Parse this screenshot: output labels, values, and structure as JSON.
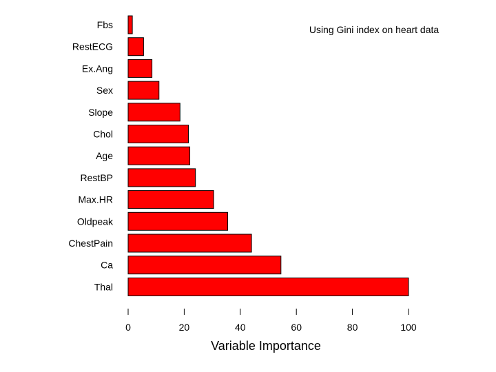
{
  "chart_data": {
    "type": "bar",
    "orientation": "horizontal",
    "categories": [
      "Fbs",
      "RestECG",
      "Ex.Ang",
      "Sex",
      "Slope",
      "Chol",
      "Age",
      "RestBP",
      "Max.HR",
      "Oldpeak",
      "ChestPain",
      "Ca",
      "Thal"
    ],
    "values": [
      1.5,
      5.5,
      8.5,
      11,
      18.5,
      21.5,
      22,
      24,
      30.5,
      35.5,
      44,
      54.5,
      100
    ],
    "xlabel": "Variable Importance",
    "ylabel": "",
    "xlim": [
      0,
      100
    ],
    "xticks": [
      0,
      20,
      40,
      60,
      80,
      100
    ],
    "annotation": "Using Gini index on heart data",
    "grid": false,
    "bar_color": "#ff0000"
  }
}
